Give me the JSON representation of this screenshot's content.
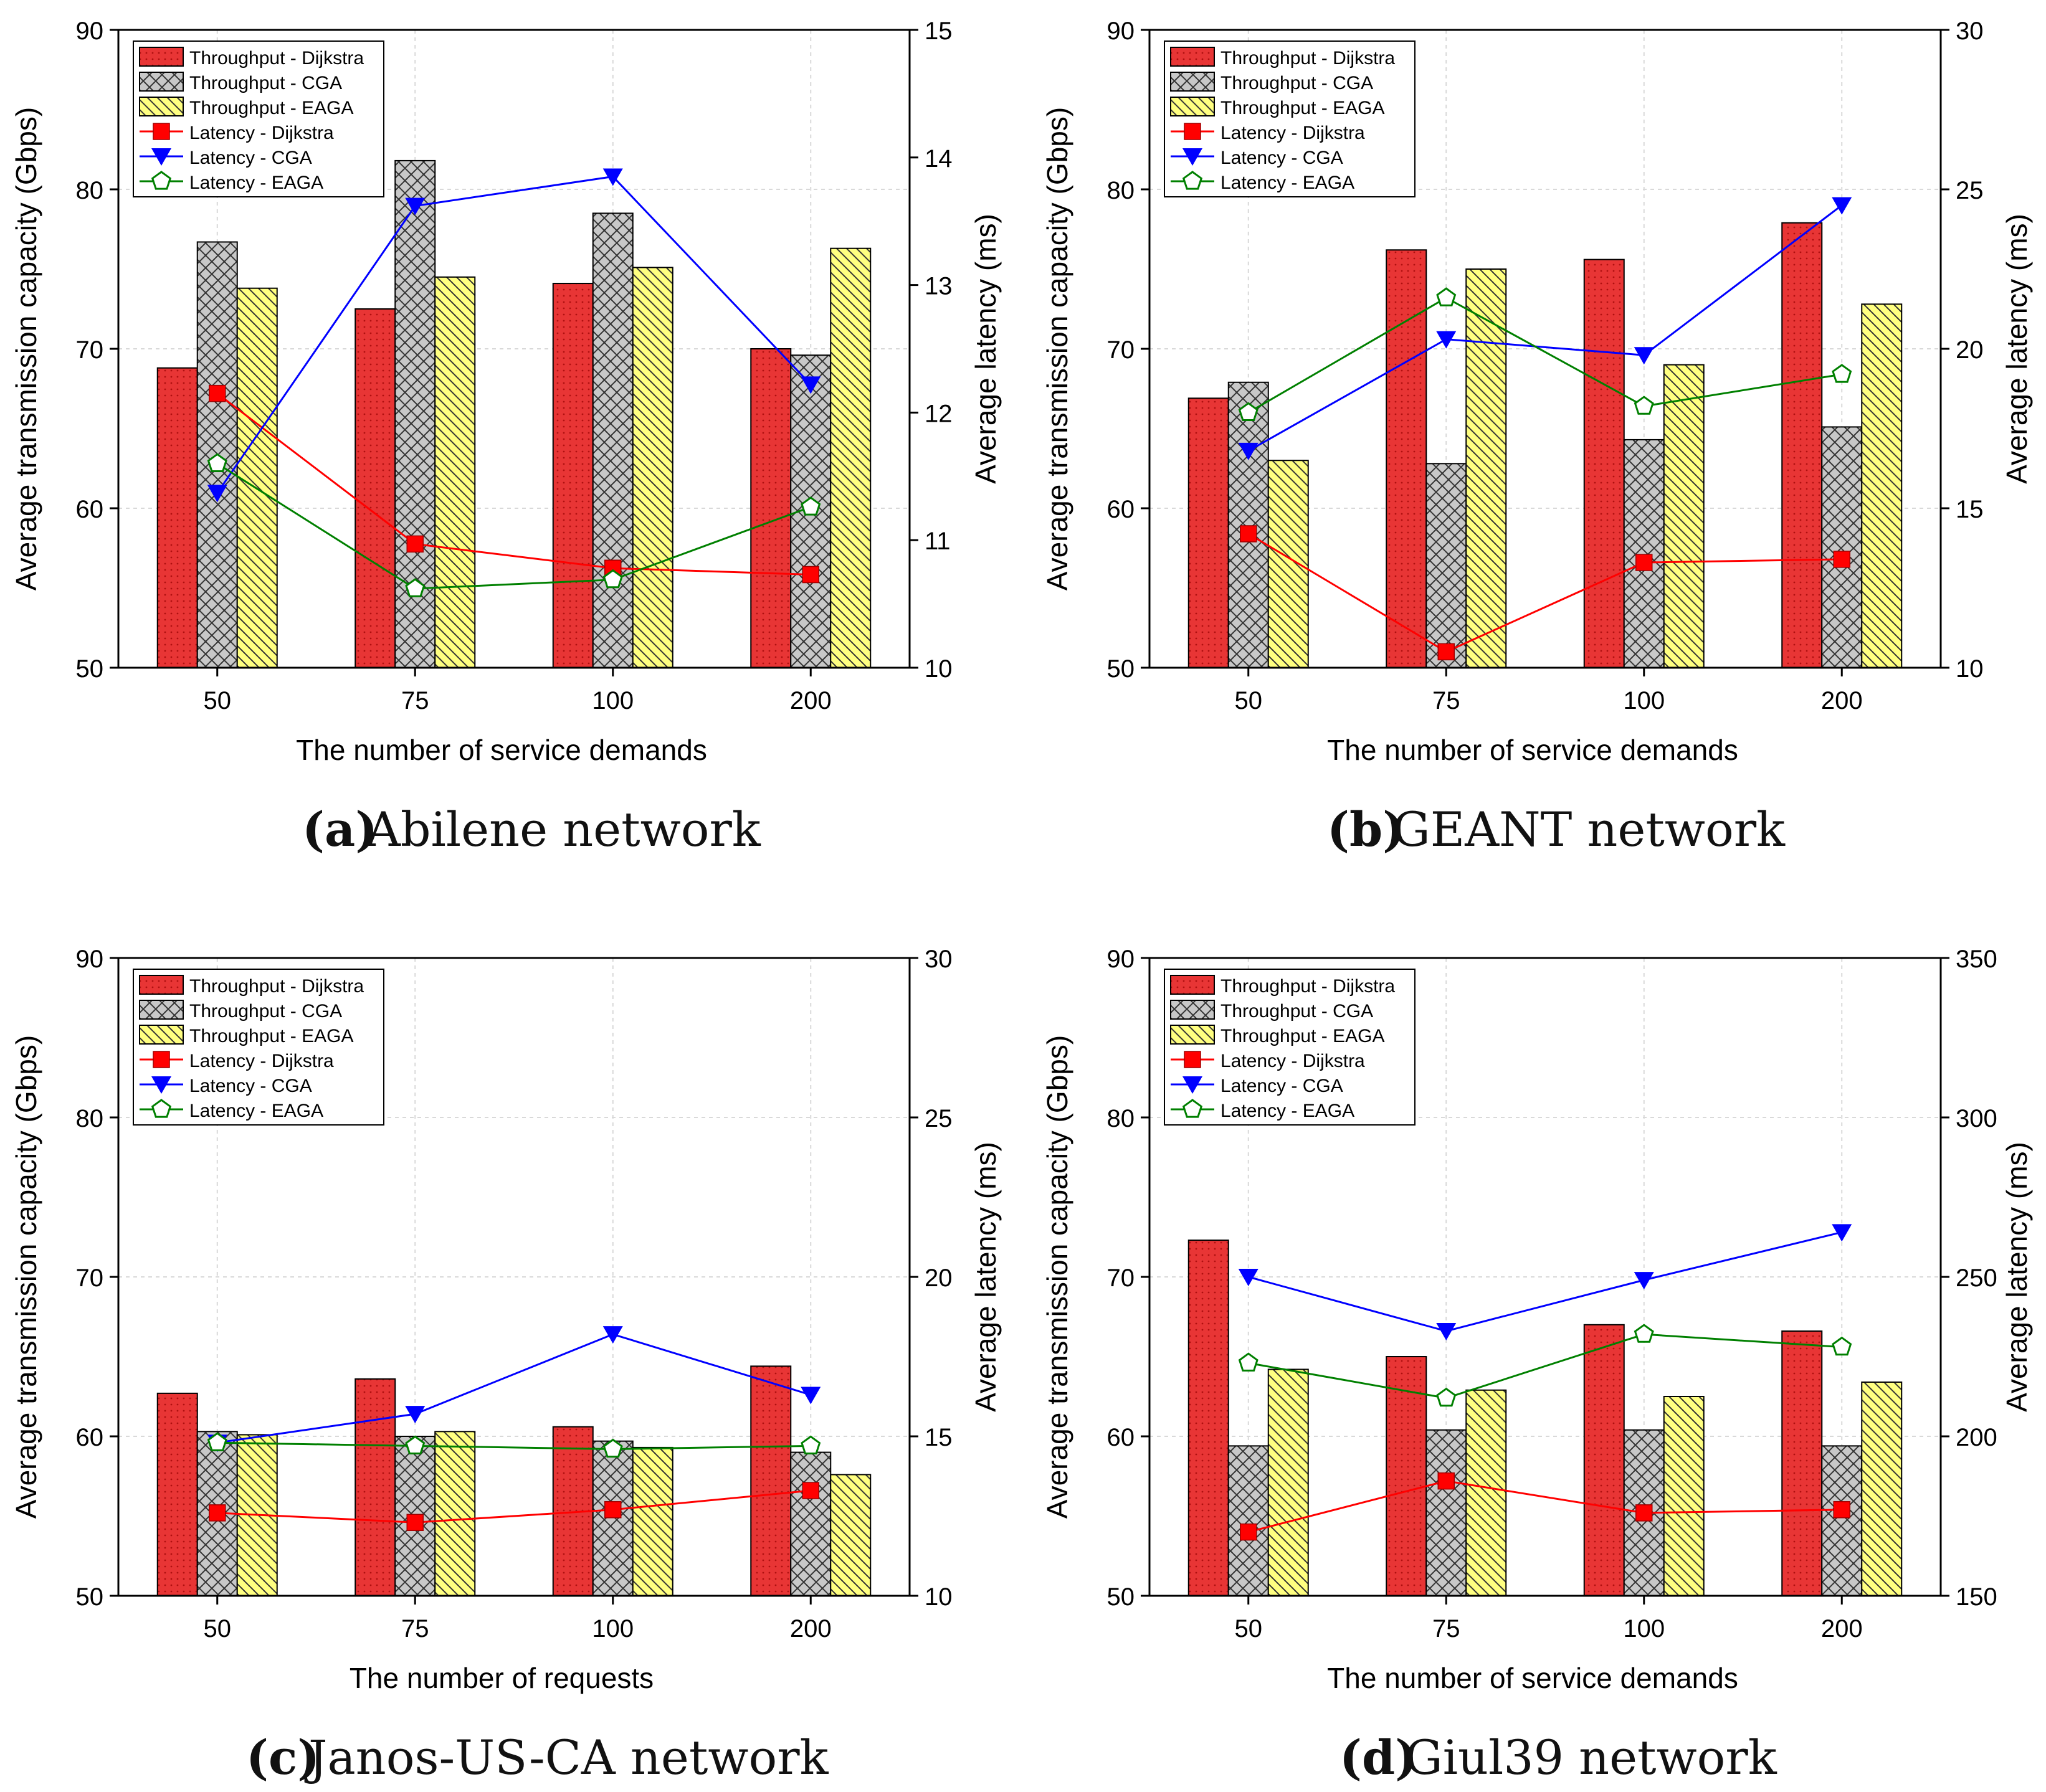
{
  "colors": {
    "dijkstra_bar": "#e83535",
    "cga_bar": "#c8c8c8",
    "eaga_bar": "#ffff80",
    "dijkstra_line": "#ff0000",
    "cga_line": "#0000ff",
    "eaga_line": "#008000",
    "grid": "#d9d9d9"
  },
  "icons": {
    "dijkstra_marker": "square-marker",
    "cga_marker": "down-triangle-marker",
    "eaga_marker": "pentagon-marker"
  },
  "chart_data": [
    {
      "id": "a",
      "type": "bar",
      "caption": {
        "label": "a",
        "text": "Abilene network"
      },
      "categories": [
        "50",
        "75",
        "100",
        "200"
      ],
      "xlabel": "The number of service demands",
      "ylabel": "Average transmission capacity (Gbps)",
      "y2label": "Average latency (ms)",
      "ylim": [
        50,
        90
      ],
      "yticks": [
        50,
        60,
        70,
        80,
        90
      ],
      "y2lim": [
        10,
        15
      ],
      "y2ticks": [
        10,
        11,
        12,
        13,
        14,
        15
      ],
      "legend": [
        "Throughput - Dijkstra",
        "Throughput - CGA",
        "Throughput - EAGA",
        "Latency - Dijkstra",
        "Latency - CGA",
        "Latency - EAGA"
      ],
      "series": [
        {
          "name": "Throughput - Dijkstra",
          "kind": "bar",
          "axis": "left",
          "values": [
            68.8,
            72.5,
            74.1,
            70.0
          ]
        },
        {
          "name": "Throughput - CGA",
          "kind": "bar",
          "axis": "left",
          "values": [
            76.7,
            81.8,
            78.5,
            69.6
          ]
        },
        {
          "name": "Throughput - EAGA",
          "kind": "bar",
          "axis": "left",
          "values": [
            73.8,
            74.5,
            75.1,
            76.3
          ]
        },
        {
          "name": "Latency - Dijkstra",
          "kind": "line",
          "axis": "right",
          "values": [
            12.15,
            10.97,
            10.78,
            10.73
          ]
        },
        {
          "name": "Latency - CGA",
          "kind": "line",
          "axis": "right",
          "values": [
            11.37,
            13.62,
            13.85,
            12.22
          ]
        },
        {
          "name": "Latency - EAGA",
          "kind": "line",
          "axis": "right",
          "values": [
            11.6,
            10.62,
            10.69,
            11.26
          ]
        }
      ]
    },
    {
      "id": "b",
      "type": "bar",
      "caption": {
        "label": "b",
        "text": "GEANT network"
      },
      "categories": [
        "50",
        "75",
        "100",
        "200"
      ],
      "xlabel": "The number of service demands",
      "ylabel": "Average transmission capacity (Gbps)",
      "y2label": "Average latency (ms)",
      "ylim": [
        50,
        90
      ],
      "yticks": [
        50,
        60,
        70,
        80,
        90
      ],
      "y2lim": [
        10,
        30
      ],
      "y2ticks": [
        10,
        15,
        20,
        25,
        30
      ],
      "legend": [
        "Throughput - Dijkstra",
        "Throughput - CGA",
        "Throughput - EAGA",
        "Latency - Dijkstra",
        "Latency - CGA",
        "Latency - EAGA"
      ],
      "series": [
        {
          "name": "Throughput - Dijkstra",
          "kind": "bar",
          "axis": "left",
          "values": [
            66.9,
            76.2,
            75.6,
            77.9
          ]
        },
        {
          "name": "Throughput - CGA",
          "kind": "bar",
          "axis": "left",
          "values": [
            67.9,
            62.8,
            64.3,
            65.1
          ]
        },
        {
          "name": "Throughput - EAGA",
          "kind": "bar",
          "axis": "left",
          "values": [
            63.0,
            75.0,
            69.0,
            72.8
          ]
        },
        {
          "name": "Latency - Dijkstra",
          "kind": "line",
          "axis": "right",
          "values": [
            14.2,
            10.5,
            13.3,
            13.4
          ]
        },
        {
          "name": "Latency - CGA",
          "kind": "line",
          "axis": "right",
          "values": [
            16.8,
            20.3,
            19.8,
            24.5
          ]
        },
        {
          "name": "Latency - EAGA",
          "kind": "line",
          "axis": "right",
          "values": [
            18.0,
            21.6,
            18.2,
            19.2
          ]
        }
      ]
    },
    {
      "id": "c",
      "type": "bar",
      "caption": {
        "label": "c",
        "text": "Janos-US-CA network"
      },
      "categories": [
        "50",
        "75",
        "100",
        "200"
      ],
      "xlabel": "The number of requests",
      "ylabel": "Average transmission capacity (Gbps)",
      "y2label": "Average latency (ms)",
      "ylim": [
        50,
        90
      ],
      "yticks": [
        50,
        60,
        70,
        80,
        90
      ],
      "y2lim": [
        10,
        30
      ],
      "y2ticks": [
        10,
        15,
        20,
        25,
        30
      ],
      "legend": [
        "Throughput - Dijkstra",
        "Throughput - CGA",
        "Throughput - EAGA",
        "Latency - Dijkstra",
        "Latency - CGA",
        "Latency - EAGA"
      ],
      "series": [
        {
          "name": "Throughput - Dijkstra",
          "kind": "bar",
          "axis": "left",
          "values": [
            62.7,
            63.6,
            60.6,
            64.4
          ]
        },
        {
          "name": "Throughput - CGA",
          "kind": "bar",
          "axis": "left",
          "values": [
            60.3,
            60.0,
            59.7,
            59.0
          ]
        },
        {
          "name": "Throughput - EAGA",
          "kind": "bar",
          "axis": "left",
          "values": [
            60.1,
            60.3,
            59.3,
            57.6
          ]
        },
        {
          "name": "Latency - Dijkstra",
          "kind": "line",
          "axis": "right",
          "values": [
            12.6,
            12.3,
            12.7,
            13.3
          ]
        },
        {
          "name": "Latency - CGA",
          "kind": "line",
          "axis": "right",
          "values": [
            14.8,
            15.7,
            18.2,
            16.3
          ]
        },
        {
          "name": "Latency - EAGA",
          "kind": "line",
          "axis": "right",
          "values": [
            14.8,
            14.7,
            14.6,
            14.7
          ]
        }
      ]
    },
    {
      "id": "d",
      "type": "bar",
      "caption": {
        "label": "d",
        "text": "Giul39 network"
      },
      "categories": [
        "50",
        "75",
        "100",
        "200"
      ],
      "xlabel": "The number of service demands",
      "ylabel": "Average transmission capacity (Gbps)",
      "y2label": "Average latency (ms)",
      "ylim": [
        50,
        90
      ],
      "yticks": [
        50,
        60,
        70,
        80,
        90
      ],
      "y2lim": [
        150,
        350
      ],
      "y2ticks": [
        150,
        200,
        250,
        300,
        350
      ],
      "legend": [
        "Throughput - Dijkstra",
        "Throughput - CGA",
        "Throughput - EAGA",
        "Latency - Dijkstra",
        "Latency - CGA",
        "Latency - EAGA"
      ],
      "series": [
        {
          "name": "Throughput - Dijkstra",
          "kind": "bar",
          "axis": "left",
          "values": [
            72.3,
            65.0,
            67.0,
            66.6
          ]
        },
        {
          "name": "Throughput - CGA",
          "kind": "bar",
          "axis": "left",
          "values": [
            59.4,
            60.4,
            60.4,
            59.4
          ]
        },
        {
          "name": "Throughput - EAGA",
          "kind": "bar",
          "axis": "left",
          "values": [
            64.2,
            62.9,
            62.5,
            63.4
          ]
        },
        {
          "name": "Latency - Dijkstra",
          "kind": "line",
          "axis": "right",
          "values": [
            170,
            186,
            176,
            177
          ]
        },
        {
          "name": "Latency - CGA",
          "kind": "line",
          "axis": "right",
          "values": [
            250,
            233,
            249,
            264
          ]
        },
        {
          "name": "Latency - EAGA",
          "kind": "line",
          "axis": "right",
          "values": [
            223,
            212,
            232,
            228
          ]
        }
      ]
    }
  ]
}
